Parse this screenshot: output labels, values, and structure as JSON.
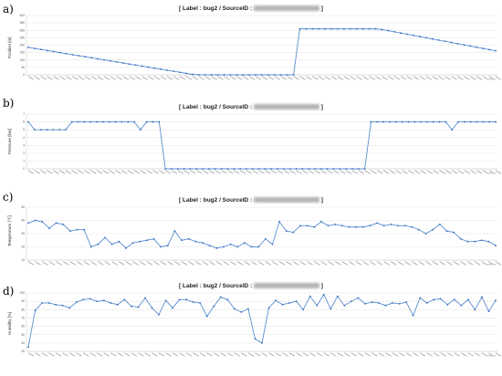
{
  "colors": {
    "series": "#5b8fd0",
    "marker": "#2f6bbd",
    "grid": "#dcdcdc"
  },
  "chart_data": [
    {
      "type": "line",
      "panel_label": "a)",
      "title_prefix": "[ Label : bug2 / SourceID : ",
      "title_suffix": " ]",
      "ylabel": "Position [m]",
      "ylim": [
        0,
        400
      ],
      "yticks": [
        0,
        50,
        100,
        150,
        200,
        250,
        300,
        350,
        400
      ],
      "values": [
        185,
        178,
        171,
        164,
        157,
        150,
        143,
        136,
        129,
        122,
        115,
        108,
        101,
        94,
        87,
        80,
        73,
        66,
        59,
        52,
        45,
        38,
        31,
        24,
        17,
        10,
        3,
        0,
        0,
        0,
        0,
        0,
        0,
        0,
        0,
        0,
        0,
        0,
        0,
        0,
        0,
        0,
        0,
        310,
        310,
        310,
        310,
        310,
        310,
        310,
        310,
        310,
        310,
        310,
        310,
        310,
        305,
        298,
        290,
        282,
        274,
        266,
        258,
        250,
        242,
        234,
        226,
        218,
        210,
        202,
        194,
        186,
        178,
        170,
        163
      ]
    },
    {
      "type": "line",
      "panel_label": "b)",
      "title_prefix": "[ Label : bug2 / SourceID : ",
      "title_suffix": " ]",
      "ylabel": "Pressure [bar]",
      "ylim": [
        0,
        7
      ],
      "yticks": [
        0,
        1,
        2,
        3,
        4,
        5,
        6,
        7
      ],
      "values": [
        6,
        5,
        5,
        5,
        5,
        5,
        5,
        6,
        6,
        6,
        6,
        6,
        6,
        6,
        6,
        6,
        6,
        6,
        5,
        6,
        6,
        6,
        0,
        0,
        0,
        0,
        0,
        0,
        0,
        0,
        0,
        0,
        0,
        0,
        0,
        0,
        0,
        0,
        0,
        0,
        0,
        0,
        0,
        0,
        0,
        0,
        0,
        0,
        0,
        0,
        0,
        0,
        0,
        0,
        0,
        6,
        6,
        6,
        6,
        6,
        6,
        6,
        6,
        6,
        6,
        6,
        6,
        6,
        5,
        6,
        6,
        6,
        6,
        6,
        6,
        6
      ]
    },
    {
      "type": "line",
      "panel_label": "c)",
      "title_prefix": "[ Label : bug2 / SourceID : ",
      "title_suffix": " ]",
      "ylabel": "Temperature [℃]",
      "ylim": [
        10,
        50
      ],
      "yticks": [
        10,
        20,
        30,
        40,
        50
      ],
      "values": [
        38,
        40,
        39,
        34,
        38,
        37,
        32,
        33,
        33,
        20,
        22,
        27,
        22,
        24,
        19,
        23,
        24,
        25,
        26,
        20,
        21,
        32,
        25,
        26,
        24,
        23,
        21,
        19,
        20,
        22,
        20,
        23,
        20,
        20,
        26,
        22,
        39,
        32,
        31,
        36,
        36,
        35,
        39,
        36,
        37,
        36,
        35,
        35,
        35,
        36,
        38,
        36,
        37,
        36,
        36,
        35,
        33,
        30,
        33,
        37,
        32,
        31,
        26,
        24,
        24,
        25,
        24,
        21
      ]
    },
    {
      "type": "line",
      "panel_label": "d)",
      "title_prefix": "[ Label : bug2 / SourceID : ",
      "title_suffix": " ]",
      "ylabel": "Humidity [%]",
      "ylim": [
        30,
        100
      ],
      "yticks": [
        30,
        40,
        50,
        60,
        70,
        80,
        90,
        100
      ],
      "values": [
        35,
        79,
        88,
        88,
        86,
        85,
        82,
        89,
        92,
        93,
        90,
        91,
        88,
        86,
        92,
        84,
        83,
        94,
        82,
        74,
        91,
        82,
        92,
        92,
        89,
        88,
        72,
        84,
        95,
        92,
        81,
        77,
        81,
        45,
        40,
        82,
        91,
        86,
        88,
        90,
        80,
        96,
        85,
        98,
        81,
        96,
        85,
        90,
        94,
        87,
        89,
        88,
        85,
        88,
        87,
        89,
        73,
        94,
        88,
        92,
        93,
        86,
        92,
        85,
        92,
        80,
        95,
        78,
        91
      ]
    }
  ]
}
